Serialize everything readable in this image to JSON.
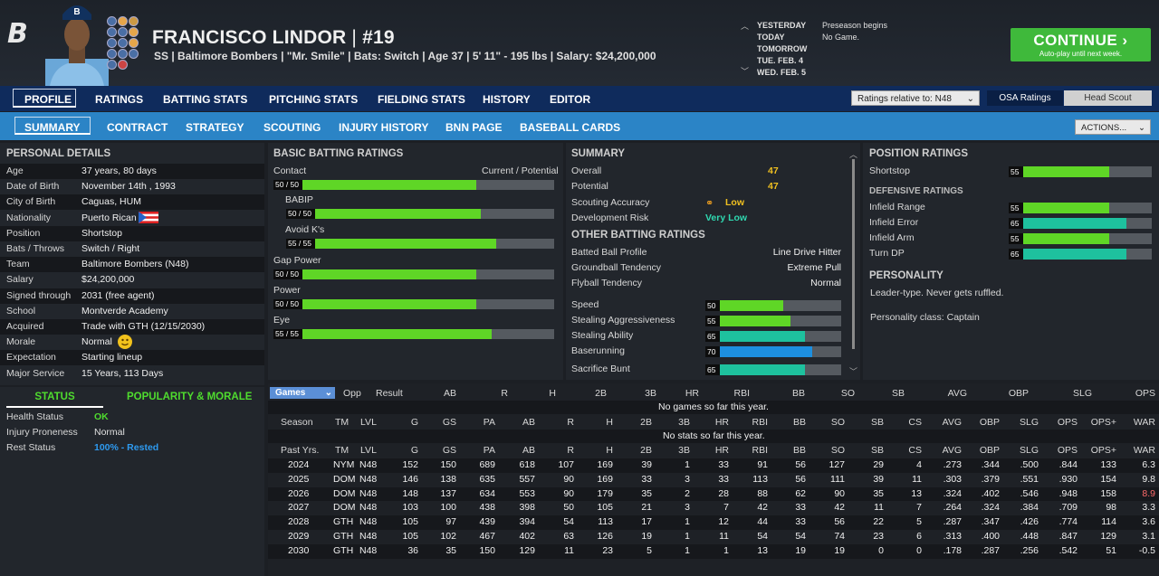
{
  "header": {
    "name": "FRANCISCO LINDOR",
    "sep": "|",
    "number": "#19",
    "info": "SS | Baltimore Bombers | \"Mr. Smile\" | Bats: Switch | Age 37 | 5' 11\" - 195 lbs | Salary: $24,200,000",
    "schedule": [
      {
        "day": "YESTERDAY",
        "event": "Preseason begins"
      },
      {
        "day": "TODAY",
        "event": "No Game."
      },
      {
        "day": "TOMORROW",
        "event": ""
      },
      {
        "day": "TUE. FEB. 4",
        "event": ""
      },
      {
        "day": "WED. FEB. 5",
        "event": ""
      }
    ],
    "continue_label": "CONTINUE",
    "continue_sub": "Auto-play until next week."
  },
  "nav1": [
    "PROFILE",
    "RATINGS",
    "BATTING STATS",
    "PITCHING STATS",
    "FIELDING STATS",
    "HISTORY",
    "EDITOR"
  ],
  "ratings_select": "Ratings relative to: N48",
  "rating_mode": [
    "OSA Ratings",
    "Head Scout"
  ],
  "nav2": [
    "SUMMARY",
    "CONTRACT",
    "STRATEGY",
    "SCOUTING",
    "INJURY HISTORY",
    "BNN PAGE",
    "BASEBALL CARDS"
  ],
  "actions": "ACTIONS...",
  "personal": {
    "title": "PERSONAL DETAILS",
    "rows": [
      [
        "Age",
        "37 years, 80 days"
      ],
      [
        "Date of Birth",
        "November 14th , 1993"
      ],
      [
        "City of Birth",
        "Caguas, HUM"
      ],
      [
        "Nationality",
        "Puerto Rican"
      ],
      [
        "Position",
        "Shortstop"
      ],
      [
        "Bats / Throws",
        "Switch / Right"
      ],
      [
        "Team",
        "Baltimore Bombers (N48)"
      ],
      [
        "Salary",
        "$24,200,000"
      ],
      [
        "Signed through",
        "2031 (free agent)"
      ],
      [
        "School",
        "Montverde Academy"
      ],
      [
        "Acquired",
        "Trade with GTH (12/15/2030)"
      ],
      [
        "Morale",
        "Normal"
      ],
      [
        "Expectation",
        "Starting lineup"
      ],
      [
        "Major Service",
        "15 Years, 113 Days"
      ]
    ]
  },
  "status": {
    "tab1": "STATUS",
    "tab2": "POPULARITY & MORALE",
    "rows": [
      [
        "Health Status",
        "OK"
      ],
      [
        "Injury Proneness",
        "Normal"
      ],
      [
        "Rest Status",
        "100% - Rested"
      ]
    ]
  },
  "batting": {
    "title": "BASIC BATTING RATINGS",
    "cp": "Current / Potential",
    "rows": [
      {
        "name": "Contact",
        "label": "50 / 50",
        "value": 50
      },
      {
        "name": "BABIP",
        "label": "50 / 50",
        "value": 50
      },
      {
        "name": "Avoid K's",
        "label": "55 / 55",
        "value": 55
      },
      {
        "name": "Gap Power",
        "label": "50 / 50",
        "value": 50
      },
      {
        "name": "Power",
        "label": "50 / 50",
        "value": 50
      },
      {
        "name": "Eye",
        "label": "55 / 55",
        "value": 55
      }
    ]
  },
  "summary": {
    "title": "SUMMARY",
    "rows": [
      [
        "Overall",
        "47"
      ],
      [
        "Potential",
        "47"
      ],
      [
        "Scouting Accuracy",
        "Low"
      ],
      [
        "Development Risk",
        "Very Low"
      ]
    ],
    "other_title": "OTHER BATTING RATINGS",
    "other": [
      [
        "Batted Ball Profile",
        "Line Drive Hitter"
      ],
      [
        "Groundball Tendency",
        "Extreme Pull"
      ],
      [
        "Flyball Tendency",
        "Normal"
      ]
    ],
    "speed": [
      {
        "name": "Speed",
        "value": 50,
        "color": "green"
      },
      {
        "name": "Stealing Aggressiveness",
        "value": 55,
        "color": "green"
      },
      {
        "name": "Stealing Ability",
        "value": 65,
        "color": "teal"
      },
      {
        "name": "Baserunning",
        "value": 70,
        "color": "blue"
      },
      {
        "name": "Sacrifice Bunt",
        "value": 65,
        "color": "teal"
      }
    ]
  },
  "position": {
    "title": "POSITION RATINGS",
    "main": {
      "name": "Shortstop",
      "value": 55
    },
    "def_title": "DEFENSIVE RATINGS",
    "def": [
      {
        "name": "Infield Range",
        "value": 55,
        "color": "green"
      },
      {
        "name": "Infield Error",
        "value": 65,
        "color": "teal"
      },
      {
        "name": "Infield Arm",
        "value": 55,
        "color": "green"
      },
      {
        "name": "Turn DP",
        "value": 65,
        "color": "teal"
      }
    ],
    "pers_title": "PERSONALITY",
    "pers1": "Leader-type. Never gets ruffled.",
    "pers2": "Personality class: Captain"
  },
  "games": {
    "select": "Games",
    "headers": [
      "Opp",
      "Result",
      "AB",
      "R",
      "H",
      "2B",
      "3B",
      "HR",
      "RBI",
      "BB",
      "SO",
      "SB",
      "AVG",
      "OBP",
      "SLG",
      "OPS"
    ],
    "empty": "No games so far this year."
  },
  "season": {
    "headers": [
      "Season",
      "TM",
      "LVL",
      "G",
      "GS",
      "PA",
      "AB",
      "R",
      "H",
      "2B",
      "3B",
      "HR",
      "RBI",
      "BB",
      "SO",
      "SB",
      "CS",
      "AVG",
      "OBP",
      "SLG",
      "OPS",
      "OPS+",
      "WAR"
    ],
    "empty": "No stats so far this year."
  },
  "past": {
    "headers": [
      "Past Yrs.",
      "TM",
      "LVL",
      "G",
      "GS",
      "PA",
      "AB",
      "R",
      "H",
      "2B",
      "3B",
      "HR",
      "RBI",
      "BB",
      "SO",
      "SB",
      "CS",
      "AVG",
      "OBP",
      "SLG",
      "OPS",
      "OPS+",
      "WAR"
    ],
    "rows": [
      [
        "2024",
        "NYM",
        "N48",
        "152",
        "150",
        "689",
        "618",
        "107",
        "169",
        "39",
        "1",
        "33",
        "91",
        "56",
        "127",
        "29",
        "4",
        ".273",
        ".344",
        ".500",
        ".844",
        "133",
        "6.3"
      ],
      [
        "2025",
        "DOM",
        "N48",
        "146",
        "138",
        "635",
        "557",
        "90",
        "169",
        "33",
        "3",
        "33",
        "113",
        "56",
        "111",
        "39",
        "11",
        ".303",
        ".379",
        ".551",
        ".930",
        "154",
        "9.8"
      ],
      [
        "2026",
        "DOM",
        "N48",
        "148",
        "137",
        "634",
        "553",
        "90",
        "179",
        "35",
        "2",
        "28",
        "88",
        "62",
        "90",
        "35",
        "13",
        ".324",
        ".402",
        ".546",
        ".948",
        "158",
        "8.9"
      ],
      [
        "2027",
        "DOM",
        "N48",
        "103",
        "100",
        "438",
        "398",
        "50",
        "105",
        "21",
        "3",
        "7",
        "42",
        "33",
        "42",
        "11",
        "7",
        ".264",
        ".324",
        ".384",
        ".709",
        "98",
        "3.3"
      ],
      [
        "2028",
        "GTH",
        "N48",
        "105",
        "97",
        "439",
        "394",
        "54",
        "113",
        "17",
        "1",
        "12",
        "44",
        "33",
        "56",
        "22",
        "5",
        ".287",
        ".347",
        ".426",
        ".774",
        "114",
        "3.6"
      ],
      [
        "2029",
        "GTH",
        "N48",
        "105",
        "102",
        "467",
        "402",
        "63",
        "126",
        "19",
        "1",
        "11",
        "54",
        "54",
        "74",
        "23",
        "6",
        ".313",
        ".400",
        ".448",
        ".847",
        "129",
        "3.1"
      ],
      [
        "2030",
        "GTH",
        "N48",
        "36",
        "35",
        "150",
        "129",
        "11",
        "23",
        "5",
        "1",
        "1",
        "13",
        "19",
        "19",
        "0",
        "0",
        ".178",
        ".287",
        ".256",
        ".542",
        "51",
        "-0.5"
      ]
    ]
  }
}
